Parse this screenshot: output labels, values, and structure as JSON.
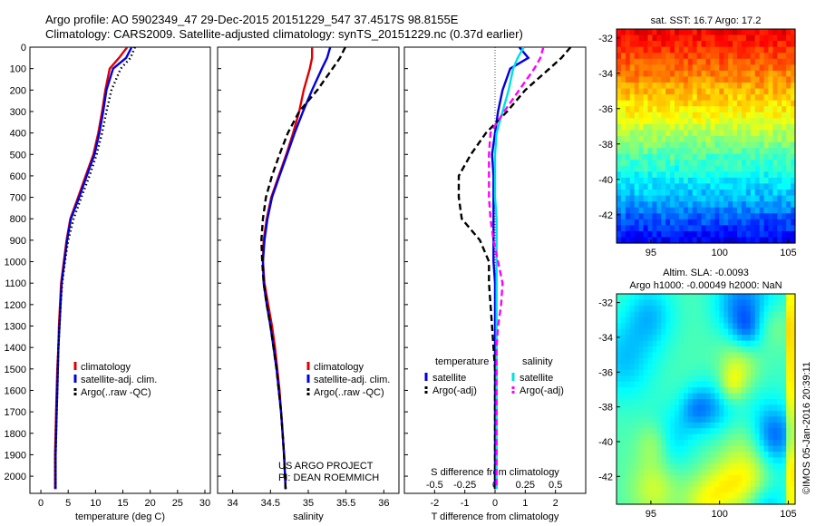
{
  "header": {
    "line1": "Argo profile: AO 5902349_47 29-Dec-2015 20151229_547 37.4517S 98.8155E",
    "line2": "Climatology: CARS2009. Satellite-adjusted climatology: synTS_20151229.nc (0.37d earlier)"
  },
  "colors": {
    "climatology": "#e00000",
    "satellite": "#0000e0",
    "argo": "#000000",
    "satellite_salinity": "#00e0e0",
    "argo_salinity_diff": "#ff00ff"
  },
  "chart_data": [
    {
      "id": "temperature",
      "type": "line",
      "xlabel": "temperature (deg C)",
      "ylabel": "",
      "xlim": [
        -2,
        31
      ],
      "ylim": [
        2080,
        0
      ],
      "xticks": [
        0,
        5,
        10,
        15,
        20,
        25,
        30
      ],
      "yticks": [
        0,
        100,
        200,
        300,
        400,
        500,
        600,
        700,
        800,
        900,
        1000,
        1100,
        1200,
        1300,
        1400,
        1500,
        1600,
        1700,
        1800,
        1900,
        2000
      ],
      "legend": [
        "climatology",
        "satellite-adj. clim.",
        "Argo(..raw -QC)"
      ],
      "legend_position": "lower-center",
      "series": [
        {
          "name": "climatology",
          "style": "solid",
          "color": "#e00000",
          "x": [
            15.8,
            14.3,
            12.6,
            11.8,
            11.2,
            10.5,
            9.6,
            8.2,
            6.8,
            5.4,
            4.7,
            4.2,
            3.7,
            3.5,
            3.3,
            3.2,
            3.0,
            2.9,
            2.8,
            2.7,
            2.6,
            2.6
          ],
          "y": [
            0,
            50,
            100,
            200,
            300,
            400,
            500,
            600,
            700,
            800,
            900,
            1000,
            1100,
            1200,
            1300,
            1400,
            1500,
            1600,
            1700,
            1800,
            1900,
            2060
          ]
        },
        {
          "name": "satellite-adj. clim.",
          "style": "solid",
          "color": "#0000e0",
          "x": [
            16.6,
            15.6,
            13.2,
            12.0,
            11.4,
            10.7,
            9.8,
            8.4,
            7.0,
            5.5,
            4.8,
            4.3,
            3.8,
            3.6,
            3.4,
            3.2,
            3.1,
            3.0,
            2.9,
            2.8,
            2.7,
            2.7
          ],
          "y": [
            0,
            50,
            100,
            200,
            300,
            400,
            500,
            600,
            700,
            800,
            900,
            1000,
            1100,
            1200,
            1300,
            1400,
            1500,
            1600,
            1700,
            1800,
            1900,
            2060
          ]
        },
        {
          "name": "Argo(..raw -QC)",
          "style": "dotted",
          "color": "#000000",
          "x": [
            17.2,
            16.4,
            14.6,
            12.9,
            12.0,
            11.2,
            10.2,
            8.9,
            7.4,
            6.0,
            5.0,
            4.4,
            3.9,
            3.6,
            3.4,
            3.2,
            3.1,
            3.0,
            2.9,
            2.8,
            2.7,
            2.7
          ],
          "y": [
            0,
            50,
            100,
            200,
            300,
            400,
            500,
            600,
            700,
            800,
            900,
            1000,
            1100,
            1200,
            1300,
            1400,
            1500,
            1600,
            1700,
            1800,
            1900,
            2060
          ]
        }
      ]
    },
    {
      "id": "salinity",
      "type": "line",
      "xlabel": "salinity",
      "ylabel": "",
      "xlim": [
        33.8,
        36.2
      ],
      "ylim": [
        2080,
        0
      ],
      "xticks": [
        34,
        34.5,
        35,
        35.5,
        36
      ],
      "xticklabels": [
        "34",
        "34.5",
        "35",
        "35.5",
        "36"
      ],
      "legend": [
        "climatology",
        "satellite-adj. clim.",
        "Argo(..raw -QC)"
      ],
      "legend_position": "lower-right",
      "annotations": [
        "US ARGO PROJECT",
        "PI: DEAN ROEMMICH"
      ],
      "series": [
        {
          "name": "climatology",
          "style": "solid",
          "color": "#e00000",
          "x": [
            35.05,
            35.05,
            35.02,
            34.94,
            34.88,
            34.8,
            34.71,
            34.61,
            34.51,
            34.45,
            34.41,
            34.4,
            34.42,
            34.47,
            34.52,
            34.56,
            34.59,
            34.62,
            34.64,
            34.66,
            34.68,
            34.7
          ],
          "y": [
            0,
            50,
            100,
            200,
            300,
            400,
            500,
            600,
            700,
            800,
            900,
            1000,
            1100,
            1200,
            1300,
            1400,
            1500,
            1600,
            1700,
            1800,
            1900,
            2060
          ]
        },
        {
          "name": "satellite-adj. clim.",
          "style": "solid",
          "color": "#0000e0",
          "x": [
            35.29,
            35.25,
            35.18,
            35.05,
            34.93,
            34.82,
            34.72,
            34.62,
            34.52,
            34.46,
            34.42,
            34.4,
            34.41,
            34.45,
            34.5,
            34.54,
            34.58,
            34.61,
            34.64,
            34.66,
            34.68,
            34.7
          ],
          "y": [
            0,
            50,
            100,
            200,
            300,
            400,
            500,
            600,
            700,
            800,
            900,
            1000,
            1100,
            1200,
            1300,
            1400,
            1500,
            1600,
            1700,
            1800,
            1900,
            2060
          ]
        },
        {
          "name": "Argo(..raw -QC)",
          "style": "dashed",
          "color": "#000000",
          "x": [
            35.49,
            35.42,
            35.32,
            35.12,
            34.88,
            34.73,
            34.62,
            34.52,
            34.44,
            34.4,
            34.38,
            34.39,
            34.41,
            34.45,
            34.5,
            34.54,
            34.58,
            34.61,
            34.64,
            34.66,
            34.68,
            34.7
          ],
          "y": [
            0,
            50,
            100,
            200,
            300,
            400,
            500,
            600,
            700,
            800,
            900,
            1000,
            1100,
            1200,
            1300,
            1400,
            1500,
            1600,
            1700,
            1800,
            1900,
            2060
          ]
        }
      ]
    },
    {
      "id": "difference",
      "type": "line",
      "xlabel": "T difference from climatology",
      "xlabel2": "S difference from climatology",
      "ylabel": "",
      "xlim": [
        -3,
        3
      ],
      "ylim": [
        2080,
        0
      ],
      "xticks": [
        -2,
        -1,
        0,
        1,
        2
      ],
      "xticklabels": [
        "-2",
        "-1",
        "0",
        "1",
        "2"
      ],
      "xticks2": [
        -2,
        -1,
        0,
        1,
        2
      ],
      "xticklabels2": [
        "-0.5",
        "-0.25",
        "0",
        "0.25",
        "0.5"
      ],
      "legend_groups": [
        {
          "title": "temperature",
          "items": [
            "satellite",
            "Argo(-adj)"
          ]
        },
        {
          "title": "salinity",
          "items": [
            "satellite",
            "Argo(-adj)"
          ]
        }
      ],
      "legend_position": "lower-center",
      "series": [
        {
          "name": "temperature satellite",
          "style": "solid",
          "color": "#0000e0",
          "x": [
            0.8,
            1.1,
            0.5,
            0.25,
            0.1,
            0.0,
            -0.1,
            -0.05,
            -0.05,
            -0.05,
            -0.05,
            -0.05,
            0.0,
            0.0,
            0.0,
            0.0,
            0.0,
            0.0,
            0.0,
            0.0,
            0.0,
            0.0
          ],
          "y": [
            0,
            50,
            100,
            200,
            300,
            400,
            500,
            600,
            700,
            800,
            900,
            1000,
            1100,
            1200,
            1300,
            1400,
            1500,
            1600,
            1700,
            1800,
            1900,
            2060
          ]
        },
        {
          "name": "temperature Argo(-adj)",
          "style": "dashed",
          "color": "#000000",
          "x": [
            2.5,
            2.2,
            1.8,
            1.0,
            0.4,
            -0.3,
            -0.8,
            -1.2,
            -1.2,
            -1.1,
            -0.5,
            -0.2,
            -0.2,
            -0.15,
            -0.1,
            -0.05,
            0.0,
            0.0,
            0.0,
            0.0,
            0.0,
            0.0
          ],
          "y": [
            0,
            50,
            100,
            200,
            300,
            400,
            500,
            600,
            700,
            800,
            900,
            1000,
            1100,
            1200,
            1300,
            1400,
            1500,
            1600,
            1700,
            1800,
            1900,
            2060
          ]
        },
        {
          "name": "salinity satellite",
          "style": "solid",
          "color": "#00e0e0",
          "x": [
            0.95,
            0.75,
            0.6,
            0.45,
            0.25,
            0.05,
            0.0,
            0.0,
            0.0,
            0.05,
            0.05,
            0.05,
            0.05,
            0.05,
            0.05,
            0.05,
            0.05,
            0.05,
            0.05,
            0.05,
            0.05,
            0.05
          ],
          "y": [
            0,
            50,
            100,
            200,
            300,
            400,
            500,
            600,
            700,
            800,
            900,
            1000,
            1100,
            1200,
            1300,
            1400,
            1500,
            1600,
            1700,
            1800,
            1900,
            2060
          ]
        },
        {
          "name": "salinity Argo(-adj)",
          "style": "dashed",
          "color": "#ff00ff",
          "x": [
            1.6,
            1.5,
            1.3,
            0.8,
            0.3,
            -0.15,
            -0.2,
            -0.2,
            -0.2,
            -0.15,
            -0.05,
            0.1,
            0.25,
            0.2,
            0.1,
            0.05,
            0.05,
            0.05,
            0.05,
            0.05,
            0.05,
            0.05
          ],
          "y": [
            0,
            50,
            100,
            200,
            300,
            400,
            500,
            600,
            700,
            800,
            900,
            1000,
            1100,
            1200,
            1300,
            1400,
            1500,
            1600,
            1700,
            1800,
            1900,
            2060
          ]
        }
      ]
    },
    {
      "id": "sst_map",
      "type": "heatmap",
      "title": "sat. SST: 16.7  Argo: 17.2",
      "xlim": [
        92.5,
        105.5
      ],
      "ylim": [
        -43.6,
        -31.5
      ],
      "xticks": [
        95,
        100,
        105
      ],
      "xticklabels": [
        "95",
        "100",
        "105"
      ],
      "yticks": [
        -32,
        -34,
        -36,
        -38,
        -40,
        -42
      ],
      "yticklabels": [
        "-32",
        "-34",
        "-36",
        "-38",
        "-40",
        "-42"
      ],
      "rows_lat_north_to_south": [
        -32,
        -34,
        -36,
        -38,
        -40,
        -42
      ],
      "row_levels": [
        0.88,
        0.75,
        0.62,
        0.45,
        0.3,
        0.12
      ]
    },
    {
      "id": "sla_map",
      "type": "heatmap",
      "title": "Altim. SLA: -0.0093",
      "subtitle": "Argo h1000: -0.00049  h2000: NaN",
      "xlim": [
        92.5,
        105.5
      ],
      "ylim": [
        -43.6,
        -31.5
      ],
      "xticks": [
        95,
        100,
        105
      ],
      "xticklabels": [
        "95",
        "100",
        "105"
      ],
      "yticks": [
        -32,
        -34,
        -36,
        -38,
        -40,
        -42
      ],
      "yticklabels": [
        "-32",
        "-34",
        "-36",
        "-38",
        "-40",
        "-42"
      ]
    }
  ],
  "credit": "©IMOS 05-Jan-2016 20:39:11"
}
